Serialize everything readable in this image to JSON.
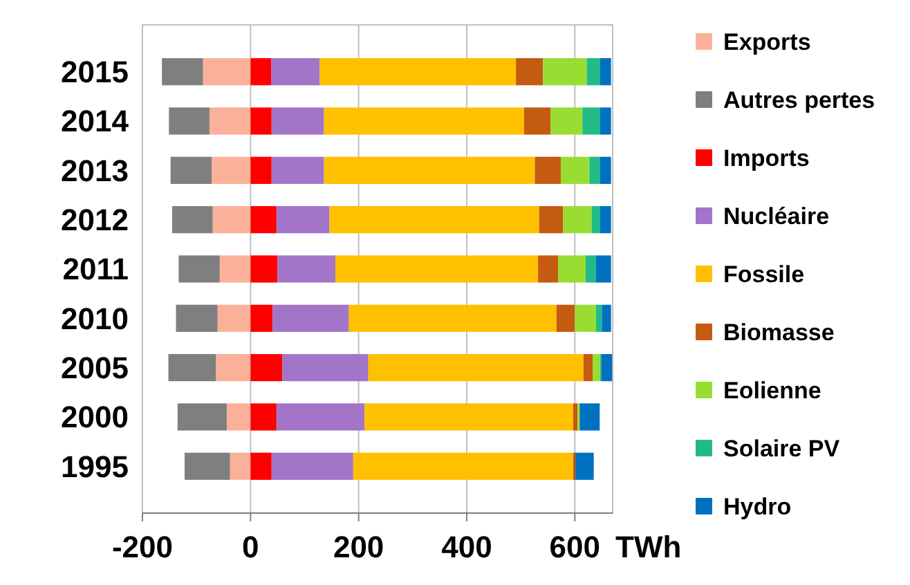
{
  "chart_data": {
    "type": "bar",
    "orientation": "horizontal",
    "stacked": true,
    "xlabel": "TWh",
    "categories": [
      "2015",
      "2014",
      "2013",
      "2012",
      "2011",
      "2010",
      "2005",
      "2000",
      "1995"
    ],
    "series": [
      {
        "name": "Exports",
        "color": "#fbb199",
        "values": [
          -88,
          -76,
          -72,
          -70,
          -57,
          -61,
          -64,
          -44,
          -38
        ]
      },
      {
        "name": "Autres pertes",
        "color": "#7f7f7f",
        "values": [
          -76,
          -75,
          -76,
          -75,
          -76,
          -77,
          -88,
          -91,
          -84
        ]
      },
      {
        "name": "Imports",
        "color": "#ff0000",
        "values": [
          38,
          39,
          39,
          48,
          50,
          41,
          59,
          48,
          39
        ]
      },
      {
        "name": "Nucléaire",
        "color": "#a275c9",
        "values": [
          90,
          97,
          97,
          98,
          107,
          141,
          159,
          163,
          151
        ]
      },
      {
        "name": "Fossile",
        "color": "#ffc000",
        "values": [
          363,
          370,
          390,
          388,
          375,
          384,
          398,
          386,
          407
        ]
      },
      {
        "name": "Biomasse",
        "color": "#c55a11",
        "values": [
          50,
          49,
          48,
          44,
          37,
          34,
          17,
          8,
          4
        ]
      },
      {
        "name": "Eolienne",
        "color": "#99dd33",
        "values": [
          81,
          59,
          53,
          53,
          51,
          39,
          14,
          4,
          0
        ]
      },
      {
        "name": "Solaire PV",
        "color": "#22bb88",
        "values": [
          25,
          33,
          20,
          16,
          19,
          11,
          2,
          0,
          0
        ]
      },
      {
        "name": "Hydro",
        "color": "#0070c0",
        "values": [
          20,
          20,
          20,
          20,
          28,
          17,
          20,
          37,
          34
        ]
      }
    ],
    "xlim": [
      -200,
      670
    ],
    "xticks": [
      -200,
      0,
      200,
      400,
      600
    ],
    "grid": "x",
    "legend": "right"
  }
}
